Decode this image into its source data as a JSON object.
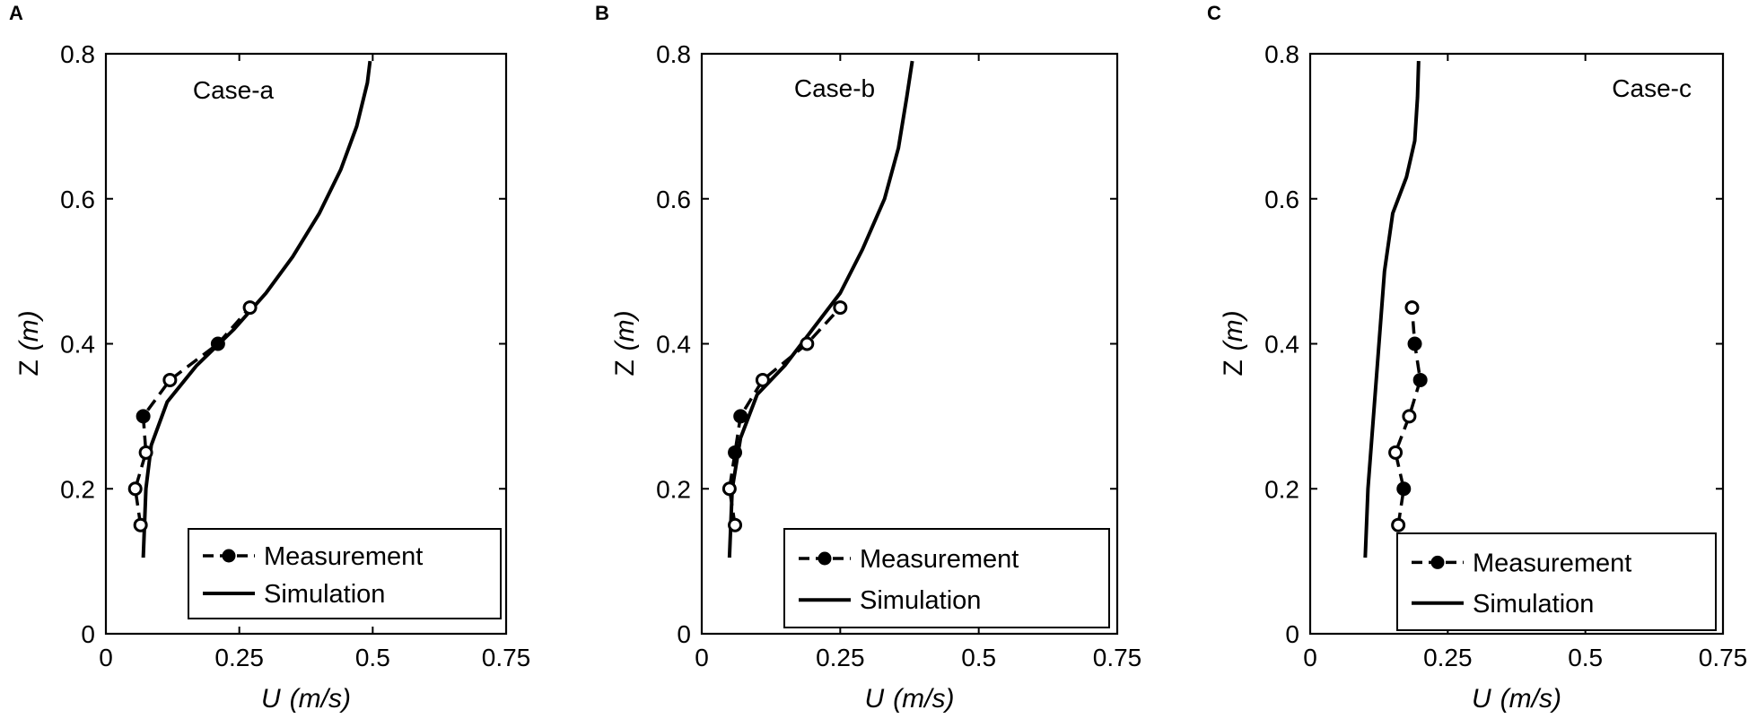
{
  "colors": {
    "ink": "#000000",
    "background": "#ffffff"
  },
  "chart_data": [
    {
      "type": "line",
      "panel_letter": "A",
      "annotation": "Case-a",
      "xlabel_main": "U",
      "xlabel_unit": "(m/s)",
      "ylabel_main": "Z",
      "ylabel_unit": "(m)",
      "xlim": [
        0,
        0.75
      ],
      "ylim": [
        0,
        0.8
      ],
      "xticks": [
        "0",
        "0.25",
        "0.5",
        "0.75"
      ],
      "yticks": [
        "0",
        "0.2",
        "0.4",
        "0.6",
        "0.8"
      ],
      "grid": false,
      "legend_position": "bottom-right",
      "series": [
        {
          "name": "Measurement",
          "style": "dashed-circle",
          "points": [
            [
              0.065,
              0.15
            ],
            [
              0.055,
              0.2
            ],
            [
              0.075,
              0.25
            ],
            [
              0.07,
              0.3
            ],
            [
              0.12,
              0.35
            ],
            [
              0.21,
              0.4
            ],
            [
              0.27,
              0.45
            ]
          ],
          "filled": [
            false,
            false,
            false,
            true,
            false,
            true,
            false
          ]
        },
        {
          "name": "Simulation",
          "style": "solid",
          "points": [
            [
              0.07,
              0.105
            ],
            [
              0.075,
              0.2
            ],
            [
              0.085,
              0.26
            ],
            [
              0.115,
              0.32
            ],
            [
              0.17,
              0.37
            ],
            [
              0.24,
              0.42
            ],
            [
              0.3,
              0.47
            ],
            [
              0.35,
              0.52
            ],
            [
              0.4,
              0.58
            ],
            [
              0.44,
              0.64
            ],
            [
              0.47,
              0.7
            ],
            [
              0.49,
              0.76
            ],
            [
              0.495,
              0.79
            ]
          ]
        }
      ]
    },
    {
      "type": "line",
      "panel_letter": "B",
      "annotation": "Case-b",
      "xlabel_main": "U",
      "xlabel_unit": "(m/s)",
      "ylabel_main": "Z",
      "ylabel_unit": "(m)",
      "xlim": [
        0,
        0.75
      ],
      "ylim": [
        0,
        0.8
      ],
      "xticks": [
        "0",
        "0.25",
        "0.5",
        "0.75"
      ],
      "yticks": [
        "0",
        "0.2",
        "0.4",
        "0.6",
        "0.8"
      ],
      "grid": false,
      "legend_position": "bottom-right",
      "series": [
        {
          "name": "Measurement",
          "style": "dashed-circle",
          "points": [
            [
              0.06,
              0.15
            ],
            [
              0.05,
              0.2
            ],
            [
              0.06,
              0.25
            ],
            [
              0.07,
              0.3
            ],
            [
              0.11,
              0.35
            ],
            [
              0.19,
              0.4
            ],
            [
              0.25,
              0.45
            ]
          ],
          "filled": [
            false,
            false,
            true,
            true,
            false,
            false,
            false
          ]
        },
        {
          "name": "Simulation",
          "style": "solid",
          "points": [
            [
              0.05,
              0.105
            ],
            [
              0.055,
              0.2
            ],
            [
              0.07,
              0.27
            ],
            [
              0.1,
              0.33
            ],
            [
              0.15,
              0.37
            ],
            [
              0.2,
              0.42
            ],
            [
              0.25,
              0.47
            ],
            [
              0.29,
              0.53
            ],
            [
              0.33,
              0.6
            ],
            [
              0.355,
              0.67
            ],
            [
              0.37,
              0.74
            ],
            [
              0.38,
              0.79
            ]
          ]
        }
      ]
    },
    {
      "type": "line",
      "panel_letter": "C",
      "annotation": "Case-c",
      "xlabel_main": "U",
      "xlabel_unit": "(m/s)",
      "ylabel_main": "Z",
      "ylabel_unit": "(m)",
      "xlim": [
        0,
        0.75
      ],
      "ylim": [
        0,
        0.8
      ],
      "xticks": [
        "0",
        "0.25",
        "0.5",
        "0.75"
      ],
      "yticks": [
        "0",
        "0.2",
        "0.4",
        "0.6",
        "0.8"
      ],
      "grid": false,
      "legend_position": "bottom-right",
      "series": [
        {
          "name": "Measurement",
          "style": "dashed-circle",
          "points": [
            [
              0.16,
              0.15
            ],
            [
              0.17,
              0.2
            ],
            [
              0.155,
              0.25
            ],
            [
              0.18,
              0.3
            ],
            [
              0.2,
              0.35
            ],
            [
              0.19,
              0.4
            ],
            [
              0.185,
              0.45
            ]
          ],
          "filled": [
            false,
            true,
            false,
            false,
            true,
            true,
            false
          ]
        },
        {
          "name": "Simulation",
          "style": "solid",
          "points": [
            [
              0.1,
              0.105
            ],
            [
              0.105,
              0.2
            ],
            [
              0.115,
              0.3
            ],
            [
              0.125,
              0.4
            ],
            [
              0.135,
              0.5
            ],
            [
              0.15,
              0.58
            ],
            [
              0.175,
              0.63
            ],
            [
              0.19,
              0.68
            ],
            [
              0.195,
              0.74
            ],
            [
              0.197,
              0.79
            ]
          ]
        }
      ]
    }
  ]
}
